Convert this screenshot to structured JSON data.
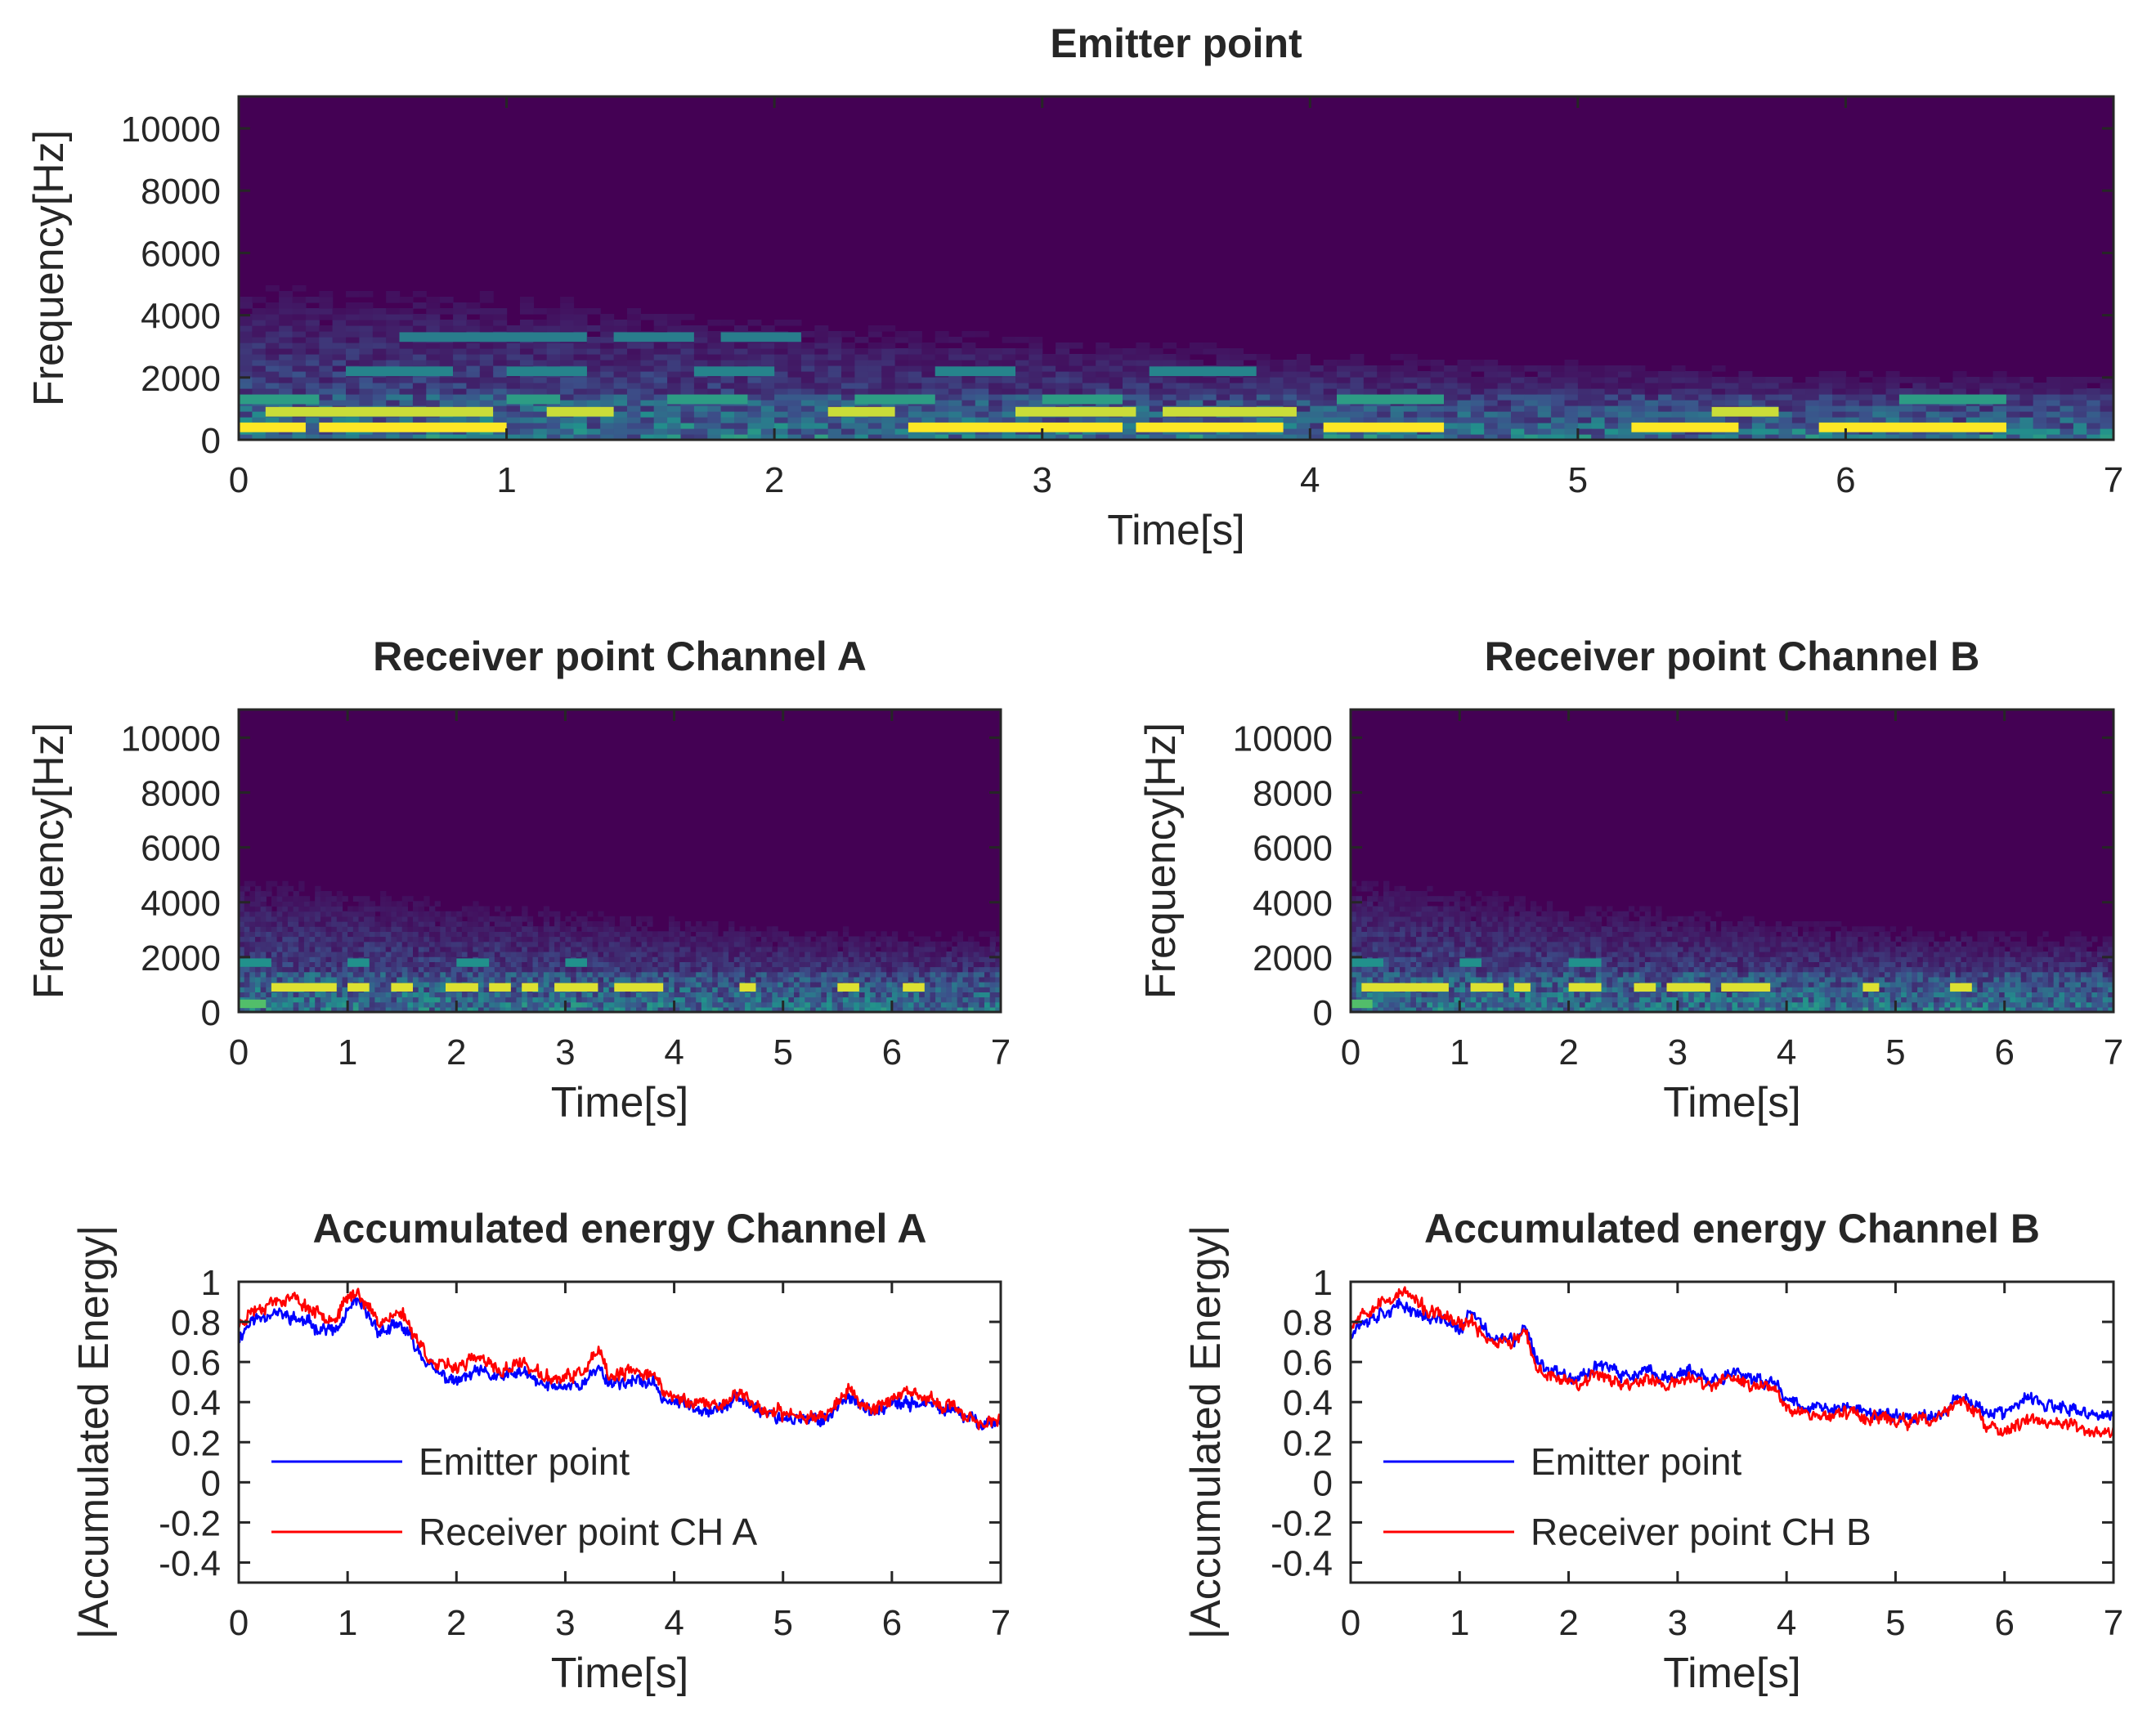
{
  "chart_data": [
    {
      "id": "emitter",
      "type": "heatmap",
      "title": "Emitter point",
      "xlabel": "Time[s]",
      "ylabel": "Frequency[Hz]",
      "xlim": [
        0,
        7
      ],
      "ylim": [
        0,
        11025
      ],
      "xticks": [
        0,
        1,
        2,
        3,
        4,
        5,
        6,
        7
      ],
      "yticks": [
        0,
        2000,
        4000,
        6000,
        8000,
        10000
      ],
      "colormap": [
        "#440154",
        "#3b528b",
        "#21918c",
        "#5ec962",
        "#fde725"
      ],
      "bands": [
        {
          "f": 400,
          "segments": [
            [
              0.0,
              0.25
            ],
            [
              0.3,
              1.0
            ],
            [
              2.5,
              3.3
            ],
            [
              3.35,
              3.9
            ],
            [
              4.05,
              4.5
            ],
            [
              5.2,
              5.6
            ],
            [
              5.9,
              6.6
            ]
          ],
          "level": 1.0
        },
        {
          "f": 900,
          "segments": [
            [
              0.1,
              0.6
            ],
            [
              0.6,
              0.95
            ],
            [
              1.15,
              1.4
            ],
            [
              2.2,
              2.45
            ],
            [
              2.9,
              3.35
            ],
            [
              3.45,
              3.95
            ],
            [
              5.5,
              5.75
            ]
          ],
          "level": 0.92
        },
        {
          "f": 1300,
          "segments": [
            [
              0.0,
              0.3
            ],
            [
              1.0,
              1.2
            ],
            [
              1.6,
              1.9
            ],
            [
              2.3,
              2.6
            ],
            [
              3.0,
              3.3
            ],
            [
              4.1,
              4.5
            ],
            [
              6.2,
              6.6
            ]
          ],
          "level": 0.55
        },
        {
          "f": 2200,
          "segments": [
            [
              0.4,
              0.8
            ],
            [
              1.0,
              1.3
            ],
            [
              1.7,
              2.0
            ],
            [
              2.6,
              2.9
            ],
            [
              3.4,
              3.8
            ]
          ],
          "level": 0.45
        },
        {
          "f": 3300,
          "segments": [
            [
              0.6,
              1.3
            ],
            [
              1.4,
              1.7
            ],
            [
              1.8,
              2.1
            ]
          ],
          "level": 0.42
        }
      ],
      "decay": [
        [
          0,
          5500
        ],
        [
          1,
          5200
        ],
        [
          2,
          4300
        ],
        [
          3,
          3700
        ],
        [
          4,
          3200
        ],
        [
          5,
          2800
        ],
        [
          6,
          2500
        ],
        [
          7,
          2300
        ]
      ]
    },
    {
      "id": "receiverA",
      "type": "heatmap",
      "title": "Receiver point Channel A",
      "xlabel": "Time[s]",
      "ylabel": "Frequency[Hz]",
      "xlim": [
        0,
        7
      ],
      "ylim": [
        0,
        11025
      ],
      "xticks": [
        0,
        1,
        2,
        3,
        4,
        5,
        6,
        7
      ],
      "yticks": [
        0,
        2000,
        4000,
        6000,
        8000,
        10000
      ],
      "bands": [
        {
          "f": 900,
          "segments": [
            [
              0.3,
              0.9
            ],
            [
              1.0,
              1.2
            ],
            [
              1.4,
              1.6
            ],
            [
              1.9,
              2.2
            ],
            [
              2.3,
              2.5
            ],
            [
              2.6,
              2.75
            ],
            [
              2.9,
              3.3
            ],
            [
              3.45,
              3.9
            ],
            [
              4.6,
              4.75
            ],
            [
              5.5,
              5.7
            ],
            [
              6.1,
              6.3
            ]
          ],
          "level": 0.95
        },
        {
          "f": 1800,
          "segments": [
            [
              0.0,
              0.3
            ],
            [
              1.0,
              1.2
            ],
            [
              2.0,
              2.3
            ],
            [
              3.0,
              3.2
            ]
          ],
          "level": 0.5
        },
        {
          "f": 300,
          "segments": [
            [
              0.0,
              0.25
            ]
          ],
          "level": 0.7
        }
      ],
      "decay": [
        [
          0,
          5500
        ],
        [
          1,
          5000
        ],
        [
          2,
          4500
        ],
        [
          3,
          4200
        ],
        [
          4,
          3800
        ],
        [
          5,
          3500
        ],
        [
          6,
          3300
        ],
        [
          7,
          3200
        ]
      ]
    },
    {
      "id": "receiverB",
      "type": "heatmap",
      "title": "Receiver point Channel B",
      "xlabel": "Time[s]",
      "ylabel": "Frequency[Hz]",
      "xlim": [
        0,
        7
      ],
      "ylim": [
        0,
        11025
      ],
      "xticks": [
        0,
        1,
        2,
        3,
        4,
        5,
        6,
        7
      ],
      "yticks": [
        0,
        2000,
        4000,
        6000,
        8000,
        10000
      ],
      "bands": [
        {
          "f": 900,
          "segments": [
            [
              0.1,
              0.9
            ],
            [
              1.1,
              1.4
            ],
            [
              1.5,
              1.65
            ],
            [
              2.0,
              2.3
            ],
            [
              2.6,
              2.8
            ],
            [
              2.9,
              3.3
            ],
            [
              3.4,
              3.85
            ],
            [
              4.7,
              4.85
            ],
            [
              5.5,
              5.7
            ]
          ],
          "level": 0.95
        },
        {
          "f": 1800,
          "segments": [
            [
              0.0,
              0.3
            ],
            [
              1.0,
              1.2
            ],
            [
              2.0,
              2.3
            ]
          ],
          "level": 0.5
        },
        {
          "f": 300,
          "segments": [
            [
              0.0,
              0.2
            ]
          ],
          "level": 0.7
        }
      ],
      "decay": [
        [
          0,
          5500
        ],
        [
          1,
          5000
        ],
        [
          2,
          4500
        ],
        [
          3,
          4200
        ],
        [
          4,
          3800
        ],
        [
          5,
          3500
        ],
        [
          6,
          3300
        ],
        [
          7,
          3200
        ]
      ]
    },
    {
      "id": "energyA",
      "type": "line",
      "title": "Accumulated energy Channel A",
      "xlabel": "Time[s]",
      "ylabel": "|Accumulated Energy|",
      "xlim": [
        0,
        7
      ],
      "ylim": [
        -0.5,
        1
      ],
      "xticks": [
        0,
        1,
        2,
        3,
        4,
        5,
        6,
        7
      ],
      "yticks": [
        1,
        0.8,
        0.6,
        0.4,
        0.2,
        0,
        -0.2,
        -0.4
      ],
      "ytick_labels": [
        "1",
        "0.8",
        "0.6",
        "0.4",
        "0.2",
        "0",
        "-0.2",
        "-0.4"
      ],
      "legend": "bottom-left",
      "series": [
        {
          "name": "Emitter point",
          "color": "#0000ff",
          "x": [
            0,
            0.1,
            0.3,
            0.5,
            0.7,
            0.9,
            1.0,
            1.1,
            1.2,
            1.3,
            1.5,
            1.6,
            1.8,
            2.0,
            2.2,
            2.4,
            2.6,
            2.8,
            3.0,
            3.2,
            3.3,
            3.4,
            3.6,
            3.8,
            3.9,
            4.0,
            4.2,
            4.4,
            4.6,
            4.8,
            5.0,
            5.2,
            5.4,
            5.6,
            5.8,
            6.0,
            6.2,
            6.4,
            6.6,
            6.8,
            7.0
          ],
          "y": [
            0.72,
            0.8,
            0.85,
            0.82,
            0.78,
            0.75,
            0.85,
            0.9,
            0.82,
            0.75,
            0.78,
            0.7,
            0.55,
            0.5,
            0.55,
            0.52,
            0.55,
            0.48,
            0.48,
            0.5,
            0.58,
            0.5,
            0.5,
            0.5,
            0.42,
            0.4,
            0.38,
            0.36,
            0.42,
            0.36,
            0.32,
            0.31,
            0.32,
            0.44,
            0.34,
            0.38,
            0.4,
            0.38,
            0.34,
            0.3,
            0.3
          ],
          "noise": 0.04,
          "seed": 11
        },
        {
          "name": "Receiver point CH A",
          "color": "#ff0000",
          "x": [
            0,
            0.1,
            0.3,
            0.5,
            0.7,
            0.9,
            1.0,
            1.1,
            1.2,
            1.3,
            1.5,
            1.6,
            1.8,
            2.0,
            2.2,
            2.4,
            2.6,
            2.8,
            3.0,
            3.2,
            3.3,
            3.4,
            3.6,
            3.8,
            3.9,
            4.0,
            4.2,
            4.4,
            4.6,
            4.8,
            5.0,
            5.2,
            5.4,
            5.6,
            5.8,
            6.0,
            6.2,
            6.4,
            6.6,
            6.8,
            7.0
          ],
          "y": [
            0.78,
            0.85,
            0.9,
            0.92,
            0.85,
            0.82,
            0.92,
            0.95,
            0.86,
            0.8,
            0.85,
            0.75,
            0.58,
            0.58,
            0.62,
            0.55,
            0.6,
            0.52,
            0.52,
            0.56,
            0.66,
            0.52,
            0.55,
            0.55,
            0.45,
            0.42,
            0.4,
            0.38,
            0.45,
            0.36,
            0.34,
            0.33,
            0.34,
            0.46,
            0.36,
            0.42,
            0.44,
            0.4,
            0.36,
            0.3,
            0.3
          ],
          "noise": 0.04,
          "seed": 23
        }
      ]
    },
    {
      "id": "energyB",
      "type": "line",
      "title": "Accumulated energy Channel B",
      "xlabel": "Time[s]",
      "ylabel": "|Accumulated Energy|",
      "xlim": [
        0,
        7
      ],
      "ylim": [
        -0.5,
        1
      ],
      "xticks": [
        0,
        1,
        2,
        3,
        4,
        5,
        6,
        7
      ],
      "yticks": [
        1,
        0.8,
        0.6,
        0.4,
        0.2,
        0,
        -0.2,
        -0.4
      ],
      "ytick_labels": [
        "1",
        "0.8",
        "0.6",
        "0.4",
        "0.2",
        "0",
        "-0.2",
        "-0.4"
      ],
      "legend": "bottom-left",
      "series": [
        {
          "name": "Emitter point",
          "color": "#0000ff",
          "x": [
            0,
            0.1,
            0.3,
            0.5,
            0.7,
            0.9,
            1.0,
            1.1,
            1.3,
            1.5,
            1.6,
            1.7,
            1.9,
            2.1,
            2.3,
            2.5,
            2.7,
            2.9,
            3.1,
            3.3,
            3.5,
            3.7,
            3.9,
            4.0,
            4.2,
            4.4,
            4.6,
            4.8,
            5.0,
            5.2,
            5.4,
            5.6,
            5.8,
            6.0,
            6.2,
            6.4,
            6.6,
            6.8,
            7.0
          ],
          "y": [
            0.75,
            0.8,
            0.85,
            0.88,
            0.82,
            0.8,
            0.75,
            0.85,
            0.72,
            0.7,
            0.78,
            0.6,
            0.55,
            0.52,
            0.6,
            0.52,
            0.55,
            0.52,
            0.55,
            0.5,
            0.55,
            0.5,
            0.5,
            0.42,
            0.38,
            0.36,
            0.38,
            0.34,
            0.33,
            0.32,
            0.34,
            0.44,
            0.36,
            0.34,
            0.42,
            0.38,
            0.36,
            0.34,
            0.32
          ],
          "noise": 0.04,
          "seed": 37
        },
        {
          "name": "Receiver point CH B",
          "color": "#ff0000",
          "x": [
            0,
            0.1,
            0.3,
            0.5,
            0.7,
            0.9,
            1.0,
            1.1,
            1.3,
            1.5,
            1.6,
            1.7,
            1.9,
            2.1,
            2.3,
            2.5,
            2.7,
            2.9,
            3.1,
            3.3,
            3.5,
            3.7,
            3.9,
            4.0,
            4.2,
            4.4,
            4.6,
            4.8,
            5.0,
            5.2,
            5.4,
            5.6,
            5.8,
            6.0,
            6.2,
            6.4,
            6.6,
            6.8,
            7.0
          ],
          "y": [
            0.78,
            0.85,
            0.9,
            0.95,
            0.85,
            0.82,
            0.78,
            0.8,
            0.7,
            0.7,
            0.75,
            0.56,
            0.52,
            0.5,
            0.55,
            0.48,
            0.52,
            0.48,
            0.52,
            0.48,
            0.52,
            0.48,
            0.48,
            0.38,
            0.34,
            0.33,
            0.35,
            0.32,
            0.31,
            0.3,
            0.32,
            0.42,
            0.3,
            0.24,
            0.32,
            0.3,
            0.28,
            0.25,
            0.25
          ],
          "noise": 0.04,
          "seed": 53
        }
      ]
    }
  ]
}
